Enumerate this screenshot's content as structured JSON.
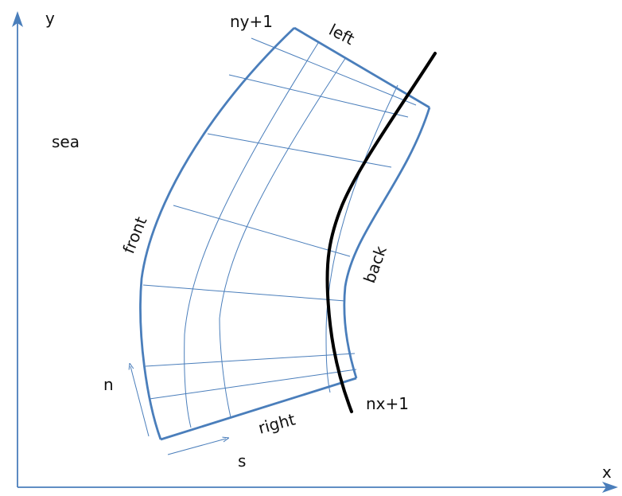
{
  "axes": {
    "x_label": "x",
    "y_label": "y",
    "color": "#4a7ebb"
  },
  "labels": {
    "sea": "sea",
    "front": "front",
    "back": "back",
    "left": "left",
    "right": "right",
    "ny_plus_1": "ny+1",
    "nx_plus_1": "nx+1",
    "n": "n",
    "s": "s"
  },
  "colors": {
    "grid": "#4a7ebb",
    "curve": "#000000",
    "text": "#111111"
  }
}
